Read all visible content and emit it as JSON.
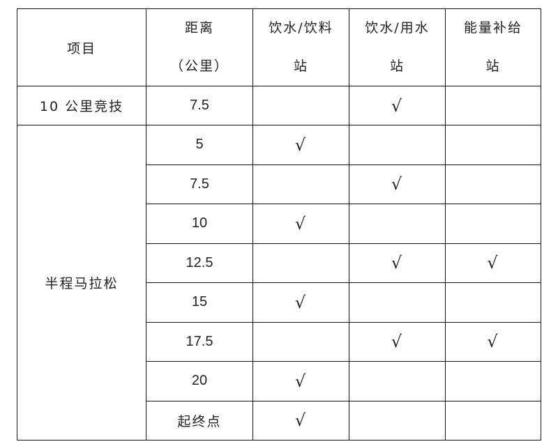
{
  "header": {
    "item": "项目",
    "distance_line1": "距离",
    "distance_line2": "（公里）",
    "drink_line1": "饮水/饮料",
    "drink_line2": "站",
    "water_line1": "饮水/用水",
    "water_line2": "站",
    "energy_line1": "能量补给",
    "energy_line2": "站"
  },
  "check_mark": "√",
  "sections": [
    {
      "name": "10 公里竞技",
      "rows": [
        {
          "distance": "7.5",
          "drink": "",
          "water": "√",
          "energy": ""
        }
      ]
    },
    {
      "name": "半程马拉松",
      "rows": [
        {
          "distance": "5",
          "drink": "√",
          "water": "",
          "energy": ""
        },
        {
          "distance": "7.5",
          "drink": "",
          "water": "√",
          "energy": ""
        },
        {
          "distance": "10",
          "drink": "√",
          "water": "",
          "energy": ""
        },
        {
          "distance": "12.5",
          "drink": "",
          "water": "√",
          "energy": "√"
        },
        {
          "distance": "15",
          "drink": "√",
          "water": "",
          "energy": ""
        },
        {
          "distance": "17.5",
          "drink": "",
          "water": "√",
          "energy": "√"
        },
        {
          "distance": "20",
          "drink": "√",
          "water": "",
          "energy": ""
        },
        {
          "distance": "起终点",
          "drink": "√",
          "water": "",
          "energy": ""
        }
      ]
    }
  ]
}
